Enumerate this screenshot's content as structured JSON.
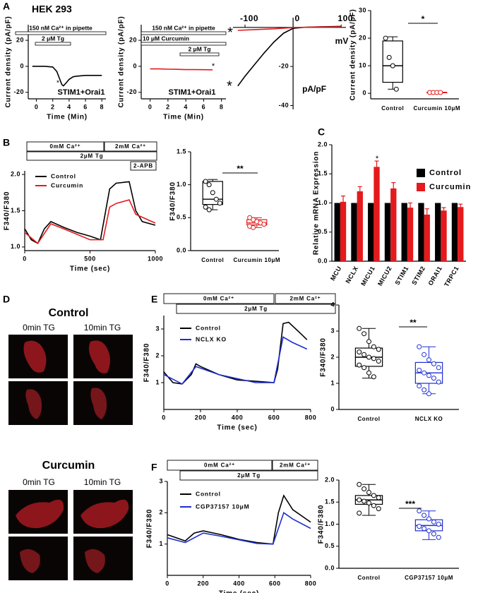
{
  "panel_labels": [
    "A",
    "B",
    "C",
    "D",
    "E",
    "F"
  ],
  "images": {
    "control_title": "Control",
    "curcumin_title": "Curcumin",
    "col_labels": [
      "0min TG",
      "10min TG",
      "0min TG",
      "10min TG"
    ]
  },
  "chart_data": [
    {
      "type": "line",
      "title": "HEK 293",
      "y_label": "Current density (pA/pF)",
      "x_label": "Time (Min)",
      "xlim": [
        -1,
        8.5
      ],
      "ylim": [
        -25,
        32
      ],
      "xticks": [
        0,
        2,
        4,
        6,
        8
      ],
      "yticks": [
        -20,
        0,
        20
      ],
      "annotations": [
        "150 nM Ca²⁺ in pipette",
        "2 μM Tg",
        "*",
        "STIM1+Orai1"
      ],
      "series": [
        {
          "color": "#000000",
          "x": [
            -0.5,
            0,
            1,
            2,
            2.5,
            2.8,
            3.1,
            3.3,
            3.6,
            4,
            4.5,
            5,
            6,
            7,
            8
          ],
          "values": [
            0,
            0,
            0,
            -0.5,
            -4,
            -9,
            -14,
            -15,
            -13,
            -10,
            -8,
            -7.5,
            -7,
            -7,
            -7
          ]
        }
      ]
    },
    {
      "type": "line",
      "y_label": "Current density (pA/pF)",
      "x_label": "Time (Min)",
      "xlim": [
        -1,
        8.5
      ],
      "ylim": [
        -25,
        32
      ],
      "xticks": [
        0,
        2,
        4,
        6,
        8
      ],
      "yticks": [
        -20,
        0,
        20
      ],
      "annotations": [
        "150 nM Ca²⁺ in pipette",
        "10 μM Curcumin",
        "2 μM Tg",
        "*",
        "STIM1+Orai1"
      ],
      "series": [
        {
          "color": "#e41a1c",
          "x": [
            0,
            1,
            2,
            3,
            4,
            5,
            6,
            7
          ],
          "values": [
            -2,
            -2,
            -2.2,
            -2.3,
            -2.5,
            -2.5,
            -2.6,
            -2.7
          ]
        }
      ]
    },
    {
      "type": "line",
      "axes": "origin",
      "x_label": "mV",
      "y_label": "pA/pF",
      "xlim": [
        -125,
        110
      ],
      "ylim": [
        -42,
        5
      ],
      "xticks": [
        -100,
        0,
        100
      ],
      "yticks": [
        -20,
        -40
      ],
      "annotations": [
        "*",
        "*"
      ],
      "series": [
        {
          "color": "#000000",
          "x": [
            -115,
            -100,
            -80,
            -60,
            -40,
            -20,
            0,
            20,
            50,
            100
          ],
          "values": [
            -30,
            -25,
            -19,
            -13,
            -7.5,
            -3,
            -0.5,
            0,
            0.3,
            0.5
          ]
        },
        {
          "color": "#e41a1c",
          "x": [
            -115,
            -80,
            -40,
            0,
            50,
            100
          ],
          "values": [
            -1.5,
            -1.1,
            -0.7,
            -0.1,
            0.2,
            0.3
          ]
        }
      ]
    },
    {
      "type": "box",
      "y_label": "Current density (pA/pF)",
      "categories": [
        "Control",
        "Curcumin 10μM"
      ],
      "ylim": [
        -2,
        30
      ],
      "yticks": [
        0,
        10,
        20,
        30
      ],
      "annotations": [
        "*"
      ],
      "boxes": [
        {
          "color": "#000000",
          "min": 1.5,
          "q1": 4,
          "median": 10,
          "q3": 19,
          "max": 20.5,
          "points": [
            20,
            13,
            10,
            1.5
          ]
        },
        {
          "color": "#e41a1c",
          "min": 0.2,
          "q1": 0.2,
          "median": 0.3,
          "q3": 0.4,
          "max": 0.4,
          "points": [
            0.3,
            0.3,
            0.3,
            0.3
          ]
        }
      ]
    },
    {
      "type": "line",
      "y_label": "F340/F380",
      "x_label": "Time (sec)",
      "xlim": [
        0,
        1000
      ],
      "ylim": [
        0.95,
        2.05
      ],
      "xticks": [
        0,
        500,
        1000
      ],
      "yticks": [
        {
          "value": 1.0,
          "label": "1.0"
        },
        1.5,
        {
          "value": 2.0,
          "label": "2.0"
        }
      ],
      "annotations": [
        "0mM Ca²⁺",
        "2mM Ca²⁺",
        "2μM Tg",
        "2-APB"
      ],
      "series": [
        {
          "name": "Control",
          "color": "#000000",
          "x": [
            0,
            50,
            100,
            150,
            200,
            300,
            400,
            500,
            580,
            620,
            650,
            700,
            800,
            850,
            900,
            1000
          ],
          "values": [
            1.25,
            1.1,
            1.05,
            1.25,
            1.35,
            1.27,
            1.2,
            1.15,
            1.1,
            1.5,
            1.8,
            1.88,
            1.9,
            1.5,
            1.35,
            1.3
          ]
        },
        {
          "name": "Curcumin",
          "color": "#e41a1c",
          "x": [
            0,
            100,
            200,
            300,
            500,
            600,
            650,
            700,
            800,
            850,
            1000
          ],
          "values": [
            1.2,
            1.05,
            1.32,
            1.25,
            1.1,
            1.1,
            1.55,
            1.6,
            1.65,
            1.45,
            1.33
          ]
        }
      ]
    },
    {
      "type": "box",
      "y_label": "F340/F380",
      "categories": [
        "Control",
        "Curcumin 10μM"
      ],
      "ylim": [
        0,
        1.5
      ],
      "yticks": [
        {
          "value": 0,
          "label": "0.0"
        },
        0.5,
        {
          "value": 1,
          "label": "1.0"
        },
        1.5
      ],
      "annotations": [
        "**"
      ],
      "boxes": [
        {
          "color": "#000000",
          "min": 0.62,
          "q1": 0.7,
          "median": 0.78,
          "q3": 1.05,
          "max": 1.08,
          "points": [
            1.05,
            1.0,
            0.88,
            0.78,
            0.72,
            0.66,
            0.62
          ]
        },
        {
          "color": "#e41a1c",
          "min": 0.35,
          "q1": 0.39,
          "median": 0.42,
          "q3": 0.47,
          "max": 0.5,
          "points": [
            0.5,
            0.47,
            0.44,
            0.42,
            0.4,
            0.37,
            0.35
          ]
        }
      ]
    },
    {
      "type": "bar",
      "y_label": "Relative mRNA Expression",
      "categories": [
        "MCU",
        "NCLX",
        "MICU1",
        "MICU2",
        "STIM1",
        "STIM2",
        "ORAI1",
        "TRPC1"
      ],
      "ylim": [
        0,
        2
      ],
      "yticks": [
        {
          "value": 0,
          "label": "0.0"
        },
        0.5,
        {
          "value": 1,
          "label": "1.0"
        },
        1.5,
        {
          "value": 2,
          "label": "2.0"
        }
      ],
      "annotations": [
        "*"
      ],
      "series": [
        {
          "name": "Control",
          "color": "#000000",
          "values": [
            1,
            1,
            1,
            1,
            1,
            1,
            1,
            1
          ]
        },
        {
          "name": "Curcumin",
          "color": "#e41a1c",
          "values": [
            1.02,
            1.2,
            1.62,
            1.25,
            0.92,
            0.8,
            0.87,
            0.93
          ],
          "errors": [
            0.1,
            0.08,
            0.1,
            0.1,
            0.08,
            0.1,
            0.05,
            0.05
          ]
        }
      ]
    },
    {
      "type": "line",
      "y_label": "F340/F380",
      "x_label": "Time (sec)",
      "xlim": [
        0,
        800
      ],
      "ylim": [
        0,
        3.5
      ],
      "xticks": [
        0,
        200,
        400,
        600,
        800
      ],
      "yticks": [
        1,
        2,
        3
      ],
      "annotations": [
        "0mM Ca²⁺",
        "2mM Ca²⁺",
        "2μM Tg"
      ],
      "series": [
        {
          "name": "Control",
          "color": "#000000",
          "x": [
            0,
            50,
            100,
            150,
            175,
            200,
            300,
            400,
            500,
            600,
            620,
            650,
            680,
            750,
            780
          ],
          "values": [
            1.4,
            1.0,
            0.95,
            1.3,
            1.7,
            1.6,
            1.3,
            1.1,
            1.05,
            1.0,
            1.5,
            3.2,
            3.25,
            2.8,
            2.6
          ]
        },
        {
          "name": "NCLX KO",
          "color": "#1f2fd0",
          "x": [
            0,
            100,
            175,
            300,
            500,
            600,
            650,
            700,
            780
          ],
          "values": [
            1.3,
            0.95,
            1.6,
            1.3,
            1.0,
            1.0,
            2.7,
            2.5,
            2.25
          ]
        }
      ]
    },
    {
      "type": "box",
      "y_label": "F340/F380",
      "categories": [
        "Control",
        "NCLX KO"
      ],
      "ylim": [
        0,
        4
      ],
      "yticks": [
        0,
        1,
        2,
        3,
        4
      ],
      "annotations": [
        "**"
      ],
      "boxes": [
        {
          "color": "#000000",
          "min": 1.2,
          "q1": 1.65,
          "median": 2.0,
          "q3": 2.35,
          "max": 3.1,
          "points": [
            3.1,
            2.9,
            2.6,
            2.4,
            2.3,
            2.2,
            2.1,
            2.0,
            1.95,
            1.85,
            1.7,
            1.6,
            1.4,
            1.25
          ]
        },
        {
          "color": "#1f2fd0",
          "min": 0.6,
          "q1": 1.0,
          "median": 1.4,
          "q3": 1.8,
          "max": 2.4,
          "points": [
            2.4,
            2.1,
            1.9,
            1.75,
            1.6,
            1.5,
            1.4,
            1.3,
            1.2,
            1.05,
            0.9,
            0.75,
            0.6
          ]
        }
      ]
    },
    {
      "type": "line",
      "y_label": "F340/F380",
      "x_label": "Time (sec)",
      "xlim": [
        0,
        800
      ],
      "ylim": [
        0,
        3
      ],
      "xticks": [
        0,
        200,
        400,
        600,
        800
      ],
      "yticks": [
        1,
        2,
        3
      ],
      "annotations": [
        "0mM Ca²⁺",
        "2mM Ca²⁺",
        "2μM Tg"
      ],
      "series": [
        {
          "name": "Control",
          "color": "#000000",
          "x": [
            0,
            100,
            150,
            200,
            300,
            400,
            500,
            590,
            620,
            650,
            700,
            800
          ],
          "values": [
            1.3,
            1.1,
            1.35,
            1.42,
            1.3,
            1.15,
            1.05,
            1.0,
            2.0,
            2.55,
            2.1,
            1.7
          ]
        },
        {
          "name": "CGP37157 10μM",
          "color": "#1f2fd0",
          "x": [
            0,
            100,
            200,
            300,
            500,
            590,
            650,
            700,
            800
          ],
          "values": [
            1.2,
            1.05,
            1.35,
            1.25,
            1.02,
            1.0,
            2.0,
            1.8,
            1.5
          ]
        }
      ]
    },
    {
      "type": "box",
      "y_label": "F340/F380",
      "categories": [
        "Control",
        "CGP37157 10μM"
      ],
      "ylim": [
        0,
        2
      ],
      "yticks": [
        {
          "value": 0,
          "label": "0.0"
        },
        0.5,
        {
          "value": 1,
          "label": "1.0"
        },
        1.5,
        {
          "value": 2,
          "label": "2.0"
        }
      ],
      "annotations": [
        "***"
      ],
      "boxes": [
        {
          "color": "#000000",
          "min": 1.2,
          "q1": 1.45,
          "median": 1.55,
          "q3": 1.65,
          "max": 1.9,
          "points": [
            1.9,
            1.8,
            1.72,
            1.65,
            1.6,
            1.55,
            1.52,
            1.48,
            1.42,
            1.35,
            1.25
          ]
        },
        {
          "color": "#1f2fd0",
          "min": 0.65,
          "q1": 0.85,
          "median": 0.97,
          "q3": 1.1,
          "max": 1.3,
          "points": [
            1.3,
            1.2,
            1.12,
            1.05,
            1.0,
            0.95,
            0.9,
            0.85,
            0.78,
            0.7
          ]
        }
      ]
    }
  ]
}
